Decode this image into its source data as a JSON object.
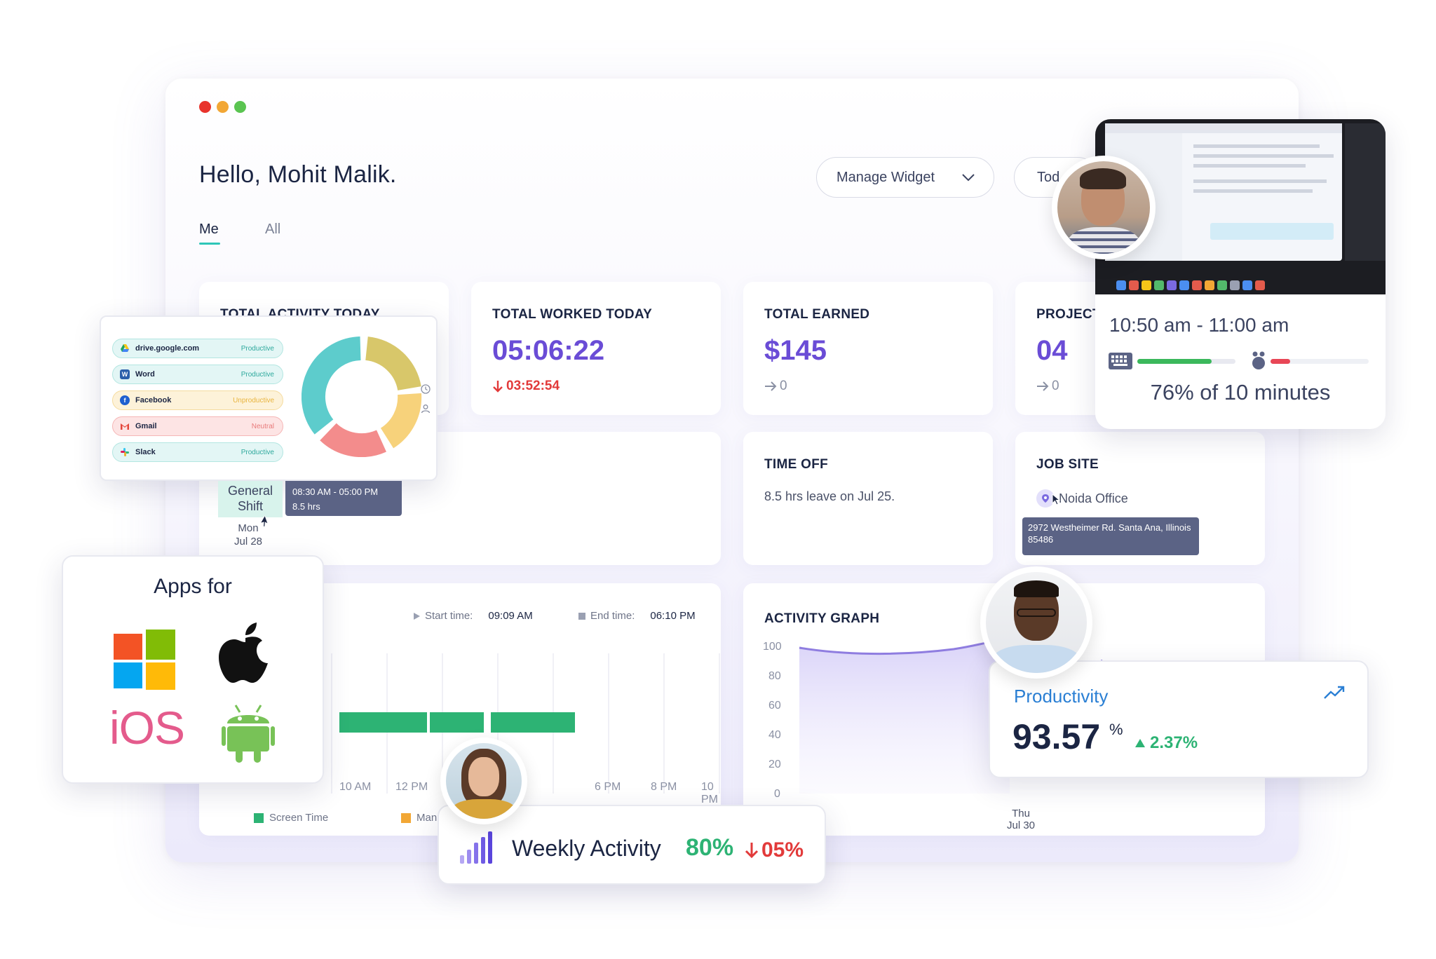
{
  "greeting": "Hello, Mohit Malik.",
  "tabs": [
    {
      "label": "Me"
    },
    {
      "label": "All"
    }
  ],
  "manage_widget": {
    "label": "Manage Widget"
  },
  "today_button": {
    "label": "Tod"
  },
  "cards": {
    "total_activity": {
      "title": "TOTAL ACTIVITY TODAY"
    },
    "total_worked": {
      "title": "TOTAL WORKED TODAY",
      "value": "05:06:22",
      "sub": "03:52:54"
    },
    "total_earned": {
      "title": "TOTAL EARNED",
      "value": "$145",
      "sub": "0"
    },
    "projects": {
      "title": "PROJECT",
      "value": "04",
      "sub": "0"
    },
    "time_off": {
      "title": "TIME OFF",
      "text": "8.5 hrs leave on Jul 25."
    },
    "job_site": {
      "title": "JOB SITE",
      "location": "Noida Office",
      "address": "2972 Westheimer Rd. Santa Ana, Illinois 85486"
    },
    "activity_graph": {
      "title": "ACTIVITY GRAPH"
    }
  },
  "app_usage": [
    {
      "name": "drive.google.com",
      "status": "Productive",
      "icon": "google-drive-icon"
    },
    {
      "name": "Word",
      "status": "Productive",
      "icon": "word-icon"
    },
    {
      "name": "Facebook",
      "status": "Unproductive",
      "icon": "facebook-icon"
    },
    {
      "name": "Gmail",
      "status": "Neutral",
      "icon": "gmail-icon"
    },
    {
      "name": "Slack",
      "status": "Productive",
      "icon": "slack-icon"
    }
  ],
  "shift": {
    "name_line1": "General",
    "name_line2": "Shift",
    "time": "08:30 AM - 05:00 PM",
    "hours": "8.5 hrs",
    "day": "Mon",
    "date": "Jul 28"
  },
  "timeline": {
    "start_label": "Start time:",
    "start_value": "09:09 AM",
    "end_label": "End time:",
    "end_value": "06:10 PM",
    "x_ticks": [
      "10 AM",
      "12 PM",
      "6 PM",
      "8 PM",
      "10 PM"
    ],
    "legend": [
      {
        "label": "Screen Time",
        "color": "#2db374"
      },
      {
        "label": "Manual Time",
        "color": "#f2a735"
      }
    ]
  },
  "activity_graph": {
    "y_ticks": [
      "100",
      "80",
      "60",
      "40",
      "20",
      "0"
    ],
    "x_label_day": "Thu",
    "x_label_date": "Jul 30"
  },
  "apps_for": {
    "title": "Apps for",
    "ios_label": "iOS"
  },
  "screenshot_widget": {
    "time_range": "10:50 am - 11:00 am",
    "summary": "76% of 10 minutes",
    "keyboard_level": 0.76,
    "mouse_level": 0.2
  },
  "productivity": {
    "label": "Productivity",
    "value": "93.57",
    "unit": "%",
    "change": "2.37%"
  },
  "weekly_activity": {
    "label": "Weekly Activity",
    "value": "80%",
    "change": "05%"
  },
  "colors": {
    "accent": "#6a4cd6",
    "teal": "#2ec6b8",
    "green": "#2db374",
    "red": "#e23a3a",
    "productivity_blue": "#2a7fd4"
  }
}
